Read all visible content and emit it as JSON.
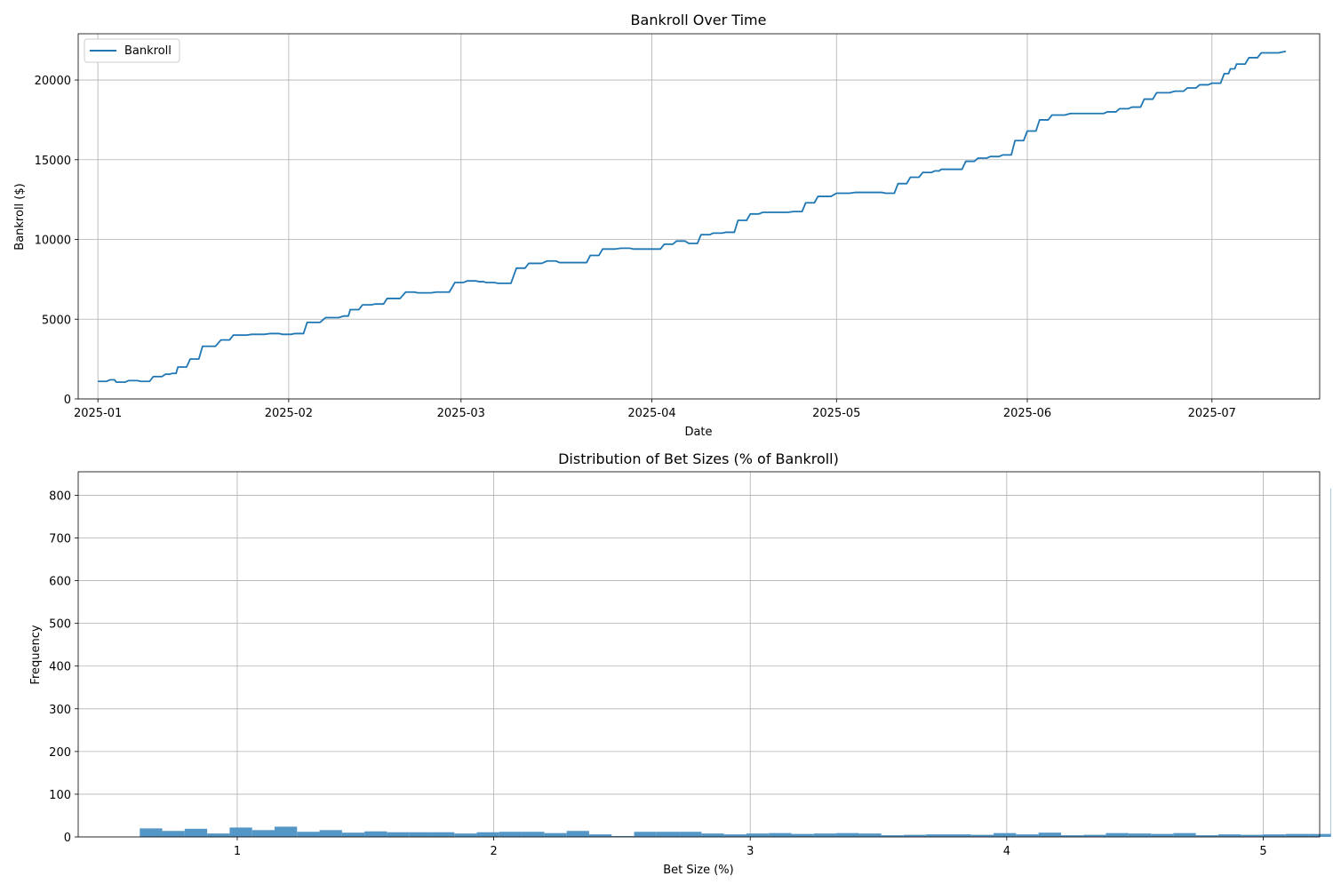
{
  "chart_data": [
    {
      "type": "line",
      "title": "Bankroll Over Time",
      "xlabel": "Date",
      "ylabel": "Bankroll ($)",
      "legend": "top-left",
      "grid": true,
      "x_range_days": [
        -3.2,
        198.5
      ],
      "ylim": [
        0,
        22900
      ],
      "x_ticks": [
        {
          "label": "2025-01",
          "day": 0
        },
        {
          "label": "2025-02",
          "day": 31
        },
        {
          "label": "2025-03",
          "day": 59
        },
        {
          "label": "2025-04",
          "day": 90
        },
        {
          "label": "2025-05",
          "day": 120
        },
        {
          "label": "2025-06",
          "day": 151
        },
        {
          "label": "2025-07",
          "day": 181
        }
      ],
      "y_ticks": [
        0,
        5000,
        10000,
        15000,
        20000
      ],
      "series": [
        {
          "name": "Bankroll",
          "color": "#1f77b4",
          "x_day": [
            0,
            2,
            3,
            5,
            7,
            9,
            11,
            12,
            13,
            15,
            17,
            20,
            22,
            25,
            28,
            30,
            32,
            34,
            37,
            40,
            41,
            43,
            45,
            47,
            50,
            52,
            55,
            58,
            60,
            62,
            63,
            65,
            68,
            70,
            73,
            75,
            78,
            80,
            82,
            85,
            87,
            90,
            92,
            94,
            96,
            98,
            100,
            102,
            104,
            106,
            108,
            110,
            113,
            115,
            117,
            120,
            123,
            126,
            128,
            130,
            132,
            134,
            136,
            137,
            139,
            141,
            143,
            145,
            147,
            149,
            151,
            153,
            155,
            158,
            160,
            162,
            164,
            166,
            168,
            170,
            172,
            175,
            177,
            179,
            181,
            183,
            184,
            185,
            187,
            189,
            193
          ],
          "values": [
            1100,
            1200,
            1050,
            1150,
            1100,
            1400,
            1550,
            1600,
            2000,
            2500,
            3300,
            3700,
            4000,
            4050,
            4100,
            4050,
            4100,
            4800,
            5100,
            5200,
            5600,
            5900,
            5950,
            6300,
            6700,
            6650,
            6700,
            7300,
            7400,
            7350,
            7300,
            7250,
            8200,
            8500,
            8650,
            8550,
            8550,
            9000,
            9400,
            9450,
            9400,
            9400,
            9700,
            9900,
            9750,
            10300,
            10400,
            10450,
            11200,
            11600,
            11700,
            11700,
            11750,
            12300,
            12700,
            12900,
            12950,
            12950,
            12900,
            13500,
            13900,
            14200,
            14300,
            14400,
            14400,
            14900,
            15100,
            15200,
            15300,
            16200,
            16800,
            17500,
            17800,
            17900,
            17900,
            17900,
            18000,
            18200,
            18300,
            18800,
            19200,
            19300,
            19500,
            19700,
            19800,
            20400,
            20700,
            21000,
            21400,
            21700,
            21800
          ]
        }
      ]
    },
    {
      "type": "bar",
      "title": "Distribution of Bet Sizes (% of Bankroll)",
      "xlabel": "Bet Size (%)",
      "ylabel": "Frequency",
      "grid": true,
      "xlim": [
        0.38,
        5.22
      ],
      "ylim": [
        0,
        855
      ],
      "x_ticks": [
        1,
        2,
        3,
        4,
        5
      ],
      "y_ticks": [
        0,
        100,
        200,
        300,
        400,
        500,
        600,
        700,
        800
      ],
      "color": "#5497c6",
      "bin_start": 0.62,
      "bin_width": 0.0876,
      "values": [
        20,
        14,
        19,
        8,
        22,
        16,
        24,
        12,
        16,
        10,
        13,
        11,
        11,
        11,
        8,
        11,
        12,
        12,
        9,
        14,
        6,
        2,
        12,
        12,
        12,
        8,
        6,
        8,
        9,
        7,
        8,
        9,
        8,
        4,
        5,
        6,
        6,
        5,
        9,
        6,
        10,
        4,
        5,
        9,
        8,
        7,
        9,
        4,
        6,
        5,
        6,
        7,
        7,
        816
      ]
    }
  ]
}
